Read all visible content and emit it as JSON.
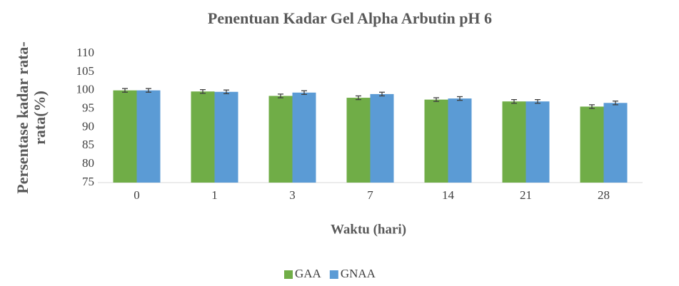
{
  "chart_data": {
    "type": "bar",
    "title": "Penentuan Kadar Gel Alpha Arbutin pH 6",
    "xlabel": "Waktu (hari)",
    "ylabel": [
      "Persentase kadar rata-",
      "rata(%)"
    ],
    "categories": [
      "0",
      "1",
      "3",
      "7",
      "14",
      "21",
      "28"
    ],
    "series": [
      {
        "name": "GAA",
        "color": "#70ad47",
        "values": [
          100.0,
          99.7,
          98.5,
          98.0,
          97.5,
          97.0,
          95.6
        ],
        "errors": [
          0.5,
          0.5,
          0.5,
          0.5,
          0.5,
          0.5,
          0.5
        ]
      },
      {
        "name": "GNAA",
        "color": "#5b9bd5",
        "values": [
          100.0,
          99.6,
          99.4,
          99.0,
          97.8,
          97.0,
          96.6
        ],
        "errors": [
          0.5,
          0.5,
          0.5,
          0.5,
          0.5,
          0.5,
          0.5
        ]
      }
    ],
    "ylim": [
      75,
      110
    ],
    "yticks": [
      75,
      80,
      85,
      90,
      95,
      100,
      105,
      110
    ],
    "grid": false,
    "legend": "bottom"
  }
}
